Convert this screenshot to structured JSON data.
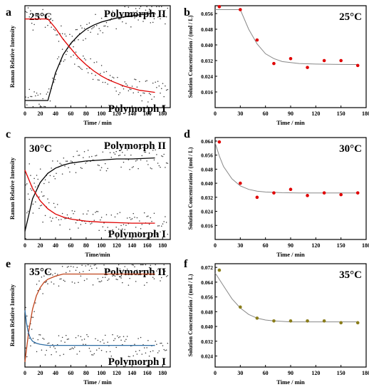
{
  "chart_data": [
    {
      "panel": "a",
      "type": "scatter",
      "temperature": "25°C",
      "label_top": "Polymorph II",
      "label_bottom": "Polymorph I",
      "ylabel": "Raman Relative Intensity",
      "xlabel": "Time / min",
      "xlim": [
        0,
        190
      ],
      "xticks": [
        0,
        20,
        40,
        60,
        80,
        100,
        120,
        140,
        160,
        180
      ],
      "series": [
        {
          "name": "Polymorph II",
          "color": "#000000",
          "x": [
            0,
            30,
            40,
            50,
            60,
            70,
            80,
            90,
            100,
            110,
            120,
            130,
            140,
            150,
            160,
            170
          ],
          "y": [
            0.07,
            0.07,
            0.34,
            0.52,
            0.63,
            0.71,
            0.77,
            0.81,
            0.84,
            0.86,
            0.88,
            0.89,
            0.9,
            0.91,
            0.92,
            0.93
          ]
        },
        {
          "name": "Polymorph I",
          "color": "#e00000",
          "x": [
            0,
            30,
            40,
            50,
            60,
            70,
            80,
            90,
            100,
            110,
            120,
            130,
            140,
            150,
            160,
            170
          ],
          "y": [
            0.87,
            0.87,
            0.78,
            0.67,
            0.58,
            0.49,
            0.42,
            0.36,
            0.31,
            0.27,
            0.24,
            0.21,
            0.19,
            0.17,
            0.16,
            0.15
          ]
        }
      ]
    },
    {
      "panel": "b",
      "type": "scatter",
      "temperature": "25°C",
      "ylabel": "Solution Concentration / (mol / L)",
      "xlabel": "Time / min",
      "xlim": [
        0,
        180
      ],
      "ylim": [
        0.008,
        0.06
      ],
      "xticks": [
        0,
        30,
        60,
        90,
        120,
        150,
        180
      ],
      "yticks": [
        0.016,
        0.024,
        0.032,
        0.04,
        0.048,
        0.056
      ],
      "points": {
        "x": [
          5,
          30,
          50,
          70,
          90,
          110,
          130,
          150,
          170
        ],
        "y": [
          0.0595,
          0.058,
          0.0425,
          0.0305,
          0.033,
          0.0285,
          0.032,
          0.032,
          0.0295
        ]
      },
      "fit": {
        "x": [
          0,
          30,
          40,
          50,
          60,
          70,
          80,
          100,
          120,
          140,
          160,
          170
        ],
        "y": [
          0.058,
          0.058,
          0.048,
          0.0405,
          0.0355,
          0.033,
          0.0315,
          0.0305,
          0.0302,
          0.0301,
          0.03,
          0.03
        ]
      }
    },
    {
      "panel": "c",
      "type": "scatter",
      "temperature": "30°C",
      "label_top": "Polymorph II",
      "label_bottom": "Polymorph I",
      "ylabel": "Raman Relative Intensity",
      "xlabel": "Time/min",
      "xlim": [
        0,
        190
      ],
      "xticks": [
        0,
        20,
        40,
        60,
        80,
        100,
        120,
        140,
        160,
        180
      ],
      "series": [
        {
          "name": "Polymorph II",
          "color": "#000000",
          "x": [
            0,
            10,
            20,
            30,
            40,
            50,
            60,
            80,
            100,
            120,
            140,
            170
          ],
          "y": [
            0.08,
            0.4,
            0.56,
            0.65,
            0.7,
            0.73,
            0.75,
            0.77,
            0.78,
            0.79,
            0.79,
            0.8
          ]
        },
        {
          "name": "Polymorph I",
          "color": "#e00000",
          "x": [
            0,
            10,
            20,
            30,
            40,
            50,
            60,
            80,
            100,
            120,
            140,
            170
          ],
          "y": [
            0.68,
            0.5,
            0.38,
            0.3,
            0.25,
            0.22,
            0.2,
            0.18,
            0.17,
            0.165,
            0.16,
            0.16
          ]
        }
      ]
    },
    {
      "panel": "d",
      "type": "scatter",
      "temperature": "30°C",
      "ylabel": "Solution Concentration / (mol / L)",
      "xlabel": "Time / min",
      "xlim": [
        0,
        180
      ],
      "ylim": [
        0.008,
        0.066
      ],
      "xticks": [
        0,
        30,
        60,
        90,
        120,
        150,
        180
      ],
      "yticks": [
        0.016,
        0.024,
        0.032,
        0.04,
        0.048,
        0.056,
        0.064
      ],
      "points": {
        "x": [
          5,
          30,
          50,
          70,
          90,
          110,
          130,
          150,
          170
        ],
        "y": [
          0.0635,
          0.04,
          0.032,
          0.0345,
          0.0365,
          0.033,
          0.0345,
          0.0335,
          0.0345
        ]
      },
      "fit": {
        "x": [
          0,
          5,
          10,
          20,
          30,
          40,
          50,
          60,
          80,
          100,
          130,
          170
        ],
        "y": [
          0.063,
          0.0555,
          0.0495,
          0.0425,
          0.0385,
          0.0365,
          0.0355,
          0.035,
          0.0346,
          0.0345,
          0.0345,
          0.0345
        ]
      }
    },
    {
      "panel": "e",
      "type": "scatter",
      "temperature": "35°C",
      "label_top": "Polymorph II",
      "label_bottom": "Polymorph I",
      "ylabel": "Raman Relative Intensity",
      "xlabel": "Time / min",
      "xlim": [
        0,
        190
      ],
      "xticks": [
        0,
        20,
        40,
        60,
        80,
        100,
        120,
        140,
        160,
        180
      ],
      "series": [
        {
          "name": "Polymorph II",
          "color": "#c0441c",
          "x": [
            0,
            5,
            10,
            15,
            20,
            25,
            30,
            40,
            50,
            60,
            80,
            100,
            130,
            170
          ],
          "y": [
            0.05,
            0.35,
            0.56,
            0.69,
            0.77,
            0.82,
            0.85,
            0.88,
            0.9,
            0.9,
            0.9,
            0.9,
            0.9,
            0.9
          ]
        },
        {
          "name": "Polymorph I",
          "color": "#2e6da4",
          "x": [
            0,
            2,
            4,
            6,
            8,
            10,
            15,
            20,
            30,
            50,
            100,
            170
          ],
          "y": [
            0.55,
            0.43,
            0.35,
            0.3,
            0.27,
            0.25,
            0.23,
            0.22,
            0.21,
            0.21,
            0.21,
            0.21
          ]
        }
      ]
    },
    {
      "panel": "f",
      "type": "scatter",
      "temperature": "35°C",
      "ylabel": "Solution Concentration / (mol / L)",
      "xlabel": "Time / min",
      "xlim": [
        0,
        180
      ],
      "ylim": [
        0.018,
        0.074
      ],
      "xticks": [
        0,
        30,
        60,
        90,
        120,
        150,
        180
      ],
      "yticks": [
        0.024,
        0.032,
        0.04,
        0.048,
        0.056,
        0.064,
        0.072
      ],
      "points": {
        "x": [
          5,
          30,
          50,
          70,
          90,
          110,
          130,
          150,
          170
        ],
        "y": [
          0.0705,
          0.0505,
          0.0445,
          0.043,
          0.043,
          0.043,
          0.043,
          0.042,
          0.042
        ]
      },
      "fit": {
        "x": [
          0,
          10,
          20,
          30,
          40,
          50,
          60,
          70,
          90,
          120,
          150,
          170
        ],
        "y": [
          0.069,
          0.062,
          0.055,
          0.05,
          0.0465,
          0.0445,
          0.0435,
          0.043,
          0.0425,
          0.0425,
          0.0425,
          0.0425
        ]
      }
    }
  ],
  "colors": {
    "frame": "#000000",
    "red_marker": "#e00000",
    "olive_marker": "#8a7d1a",
    "fit_line": "#888888",
    "scatter_dot": "#333333"
  }
}
